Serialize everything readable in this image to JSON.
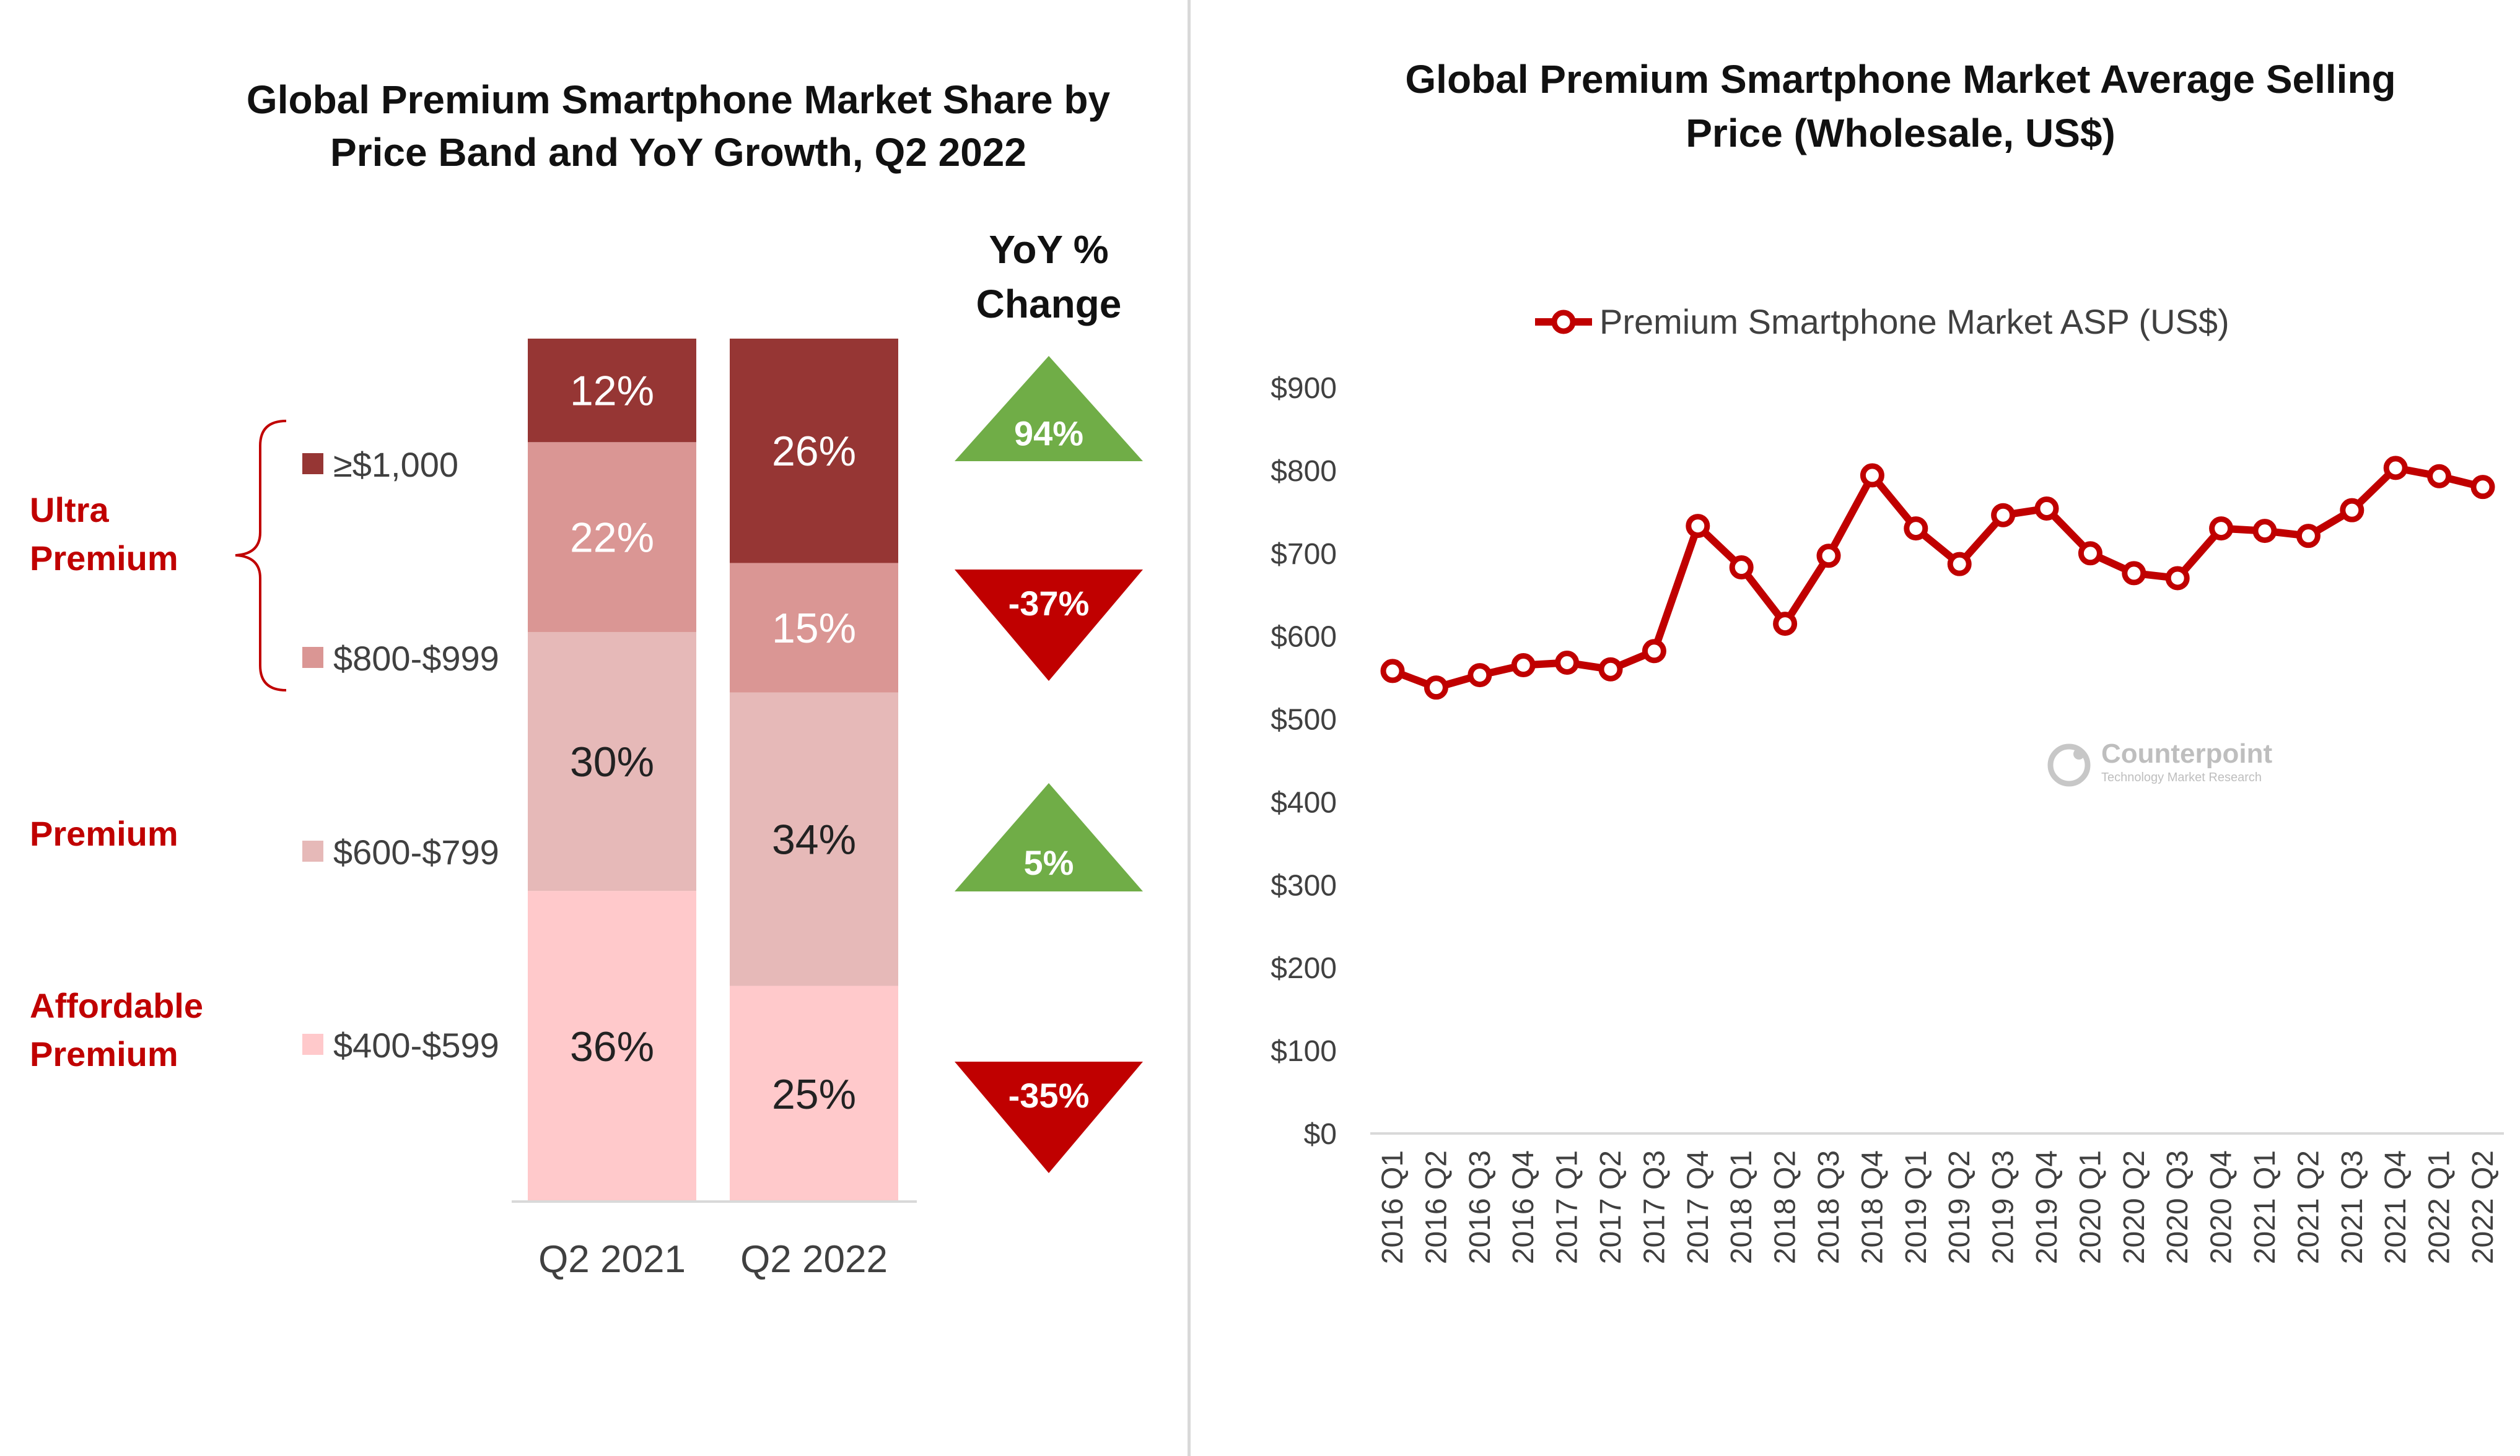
{
  "colors": {
    "band_1000": "#963634",
    "band_800": "#da9694",
    "band_600": "#e6b9b8",
    "band_400": "#ffc9cb",
    "up": "#70ad47",
    "down": "#c00000",
    "line": "#c00000",
    "group_label": "#c00000"
  },
  "chart_data": [
    {
      "type": "bar",
      "stacked": true,
      "title": "Global Premium Smartphone Market Share by Price Band and YoY Growth, Q2 2022",
      "title_lines": [
        "Global Premium Smartphone Market Share by",
        "Price Band and YoY Growth, Q2 2022"
      ],
      "categories": [
        "Q2 2021",
        "Q2 2022"
      ],
      "series": [
        {
          "name": "$400-$599",
          "color_key": "band_400",
          "values": [
            36,
            25
          ],
          "labels": [
            "36%",
            "25%"
          ]
        },
        {
          "name": "$600-$799",
          "color_key": "band_600",
          "values": [
            30,
            34
          ],
          "labels": [
            "30%",
            "34%"
          ]
        },
        {
          "name": "$800-$999",
          "color_key": "band_800",
          "values": [
            22,
            15
          ],
          "labels": [
            "22%",
            "15%"
          ]
        },
        {
          "name": "≥$1,000",
          "color_key": "band_1000",
          "values": [
            12,
            26
          ],
          "labels": [
            "12%",
            "26%"
          ]
        }
      ],
      "legend": [
        {
          "label": "≥$1,000",
          "color_key": "band_1000"
        },
        {
          "label": "$800-$999",
          "color_key": "band_800"
        },
        {
          "label": "$600-$799",
          "color_key": "band_600"
        },
        {
          "label": "$400-$599",
          "color_key": "band_400"
        }
      ],
      "groups": [
        {
          "lines": [
            "Ultra",
            "Premium"
          ],
          "bands": [
            "≥$1,000",
            "$800-$999"
          ]
        },
        {
          "lines": [
            "Premium"
          ],
          "bands": [
            "$600-$799"
          ]
        },
        {
          "lines": [
            "Affordable",
            "Premium"
          ],
          "bands": [
            "$400-$599"
          ]
        }
      ],
      "yoy_title_lines": [
        "YoY %",
        "Change"
      ],
      "yoy": [
        {
          "band": "≥$1,000",
          "value": 94,
          "label": "94%",
          "direction": "up"
        },
        {
          "band": "$800-$999",
          "value": -37,
          "label": "-37%",
          "direction": "down"
        },
        {
          "band": "$600-$799",
          "value": 5,
          "label": "5%",
          "direction": "up"
        },
        {
          "band": "$400-$599",
          "value": -35,
          "label": "-35%",
          "direction": "down"
        }
      ]
    },
    {
      "type": "line",
      "title": "Global Premium Smartphone Market Average Selling Price (Wholesale, US$)",
      "title_lines": [
        "Global Premium Smartphone Market Average Selling",
        "Price (Wholesale, US$)"
      ],
      "legend_label": "Premium Smartphone Market ASP (US$)",
      "ylim": [
        0,
        900
      ],
      "yticks": [
        0,
        100,
        200,
        300,
        400,
        500,
        600,
        700,
        800,
        900
      ],
      "ytick_labels": [
        "$0",
        "$100",
        "$200",
        "$300",
        "$400",
        "$500",
        "$600",
        "$700",
        "$800",
        "$900"
      ],
      "x": [
        "2016 Q1",
        "2016 Q2",
        "2016 Q3",
        "2016 Q4",
        "2017 Q1",
        "2017 Q2",
        "2017 Q3",
        "2017 Q4",
        "2018 Q1",
        "2018 Q2",
        "2018 Q3",
        "2018 Q4",
        "2019 Q1",
        "2019 Q2",
        "2019 Q3",
        "2019 Q4",
        "2020 Q1",
        "2020 Q2",
        "2020 Q3",
        "2020 Q4",
        "2021 Q1",
        "2021 Q2",
        "2021 Q3",
        "2021 Q4",
        "2022 Q1",
        "2022 Q2"
      ],
      "values": [
        558,
        538,
        553,
        565,
        568,
        560,
        582,
        733,
        683,
        615,
        697,
        794,
        730,
        687,
        746,
        754,
        700,
        676,
        670,
        730,
        727,
        721,
        752,
        803,
        793,
        780
      ],
      "watermark": {
        "name": "Counterpoint",
        "tagline": "Technology Market Research"
      }
    }
  ]
}
